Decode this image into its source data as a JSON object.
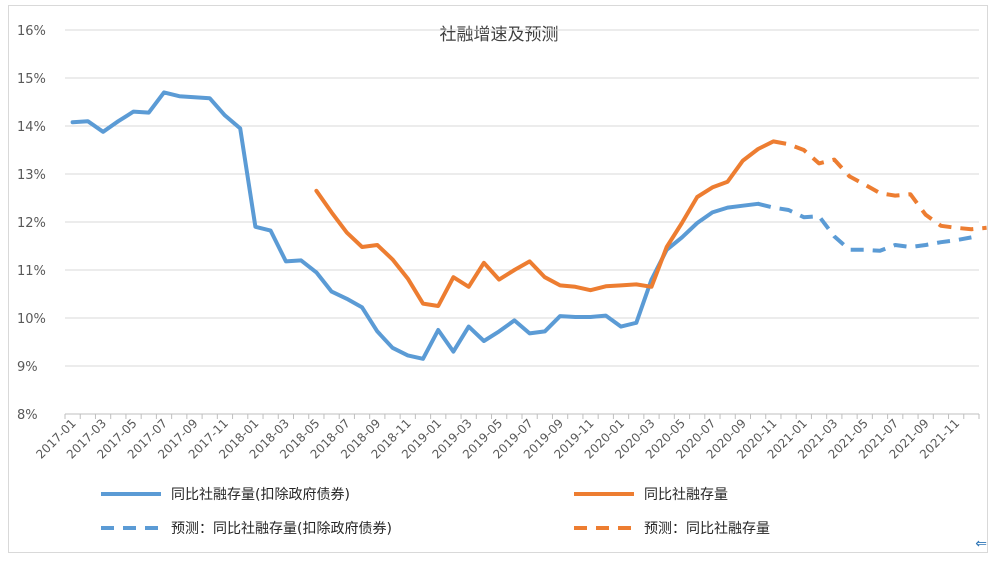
{
  "chart_data": {
    "type": "line",
    "title": "社融增速及预测",
    "xlabel": "",
    "ylabel": "",
    "ylim": [
      8,
      16
    ],
    "y_ticks": [
      "16%",
      "15%",
      "14%",
      "13%",
      "12%",
      "11%",
      "10%",
      "9%",
      "8%"
    ],
    "x_ticks": [
      "2017-01",
      "2017-03",
      "2017-05",
      "2017-07",
      "2017-09",
      "2017-11",
      "2018-01",
      "2018-03",
      "2018-05",
      "2018-07",
      "2018-09",
      "2018-11",
      "2019-01",
      "2019-03",
      "2019-05",
      "2019-07",
      "2019-09",
      "2019-11",
      "2020-01",
      "2020-03",
      "2020-05",
      "2020-07",
      "2020-09",
      "2020-11",
      "2021-01",
      "2021-03",
      "2021-05",
      "2021-07",
      "2021-09",
      "2021-11"
    ],
    "x_start": "2017-01",
    "grid": "horizontal",
    "legend_position": "bottom",
    "series": [
      {
        "name": "同比社融存量(扣除政府债券)",
        "color": "#5b9bd5",
        "dash": false,
        "start_index": 0,
        "values": [
          14.08,
          14.1,
          13.88,
          14.1,
          14.3,
          14.28,
          14.7,
          14.62,
          14.6,
          14.58,
          14.22,
          13.95,
          11.9,
          11.82,
          11.18,
          11.2,
          10.95,
          10.55,
          10.4,
          10.22,
          9.72,
          9.38,
          9.22,
          9.15,
          9.75,
          9.3,
          9.82,
          9.52,
          9.72,
          9.95,
          9.68,
          9.72,
          10.04,
          10.02,
          10.02,
          10.05,
          9.82,
          9.9,
          10.8,
          11.42,
          11.68,
          11.98,
          12.2,
          12.3,
          12.34,
          12.38
        ]
      },
      {
        "name": "同比社融存量",
        "color": "#ed7d31",
        "dash": false,
        "start_index": 16,
        "values": [
          12.65,
          12.2,
          11.78,
          11.48,
          11.52,
          11.22,
          10.82,
          10.3,
          10.25,
          10.85,
          10.65,
          11.15,
          10.8,
          11.0,
          11.18,
          10.85,
          10.68,
          10.65,
          10.58,
          10.66,
          10.68,
          10.7,
          10.65,
          11.48,
          11.98,
          12.52,
          12.72,
          12.84,
          13.28,
          13.52,
          13.68
        ]
      },
      {
        "name": "预测：同比社融存量(扣除政府债券)",
        "color": "#5b9bd5",
        "dash": true,
        "start_index": 45,
        "values": [
          12.38,
          12.3,
          12.25,
          12.1,
          12.12,
          11.7,
          11.42,
          11.42,
          11.4,
          11.52,
          11.48,
          11.52,
          11.58,
          11.62,
          11.68
        ]
      },
      {
        "name": "预测：同比社融存量",
        "color": "#ed7d31",
        "dash": true,
        "start_index": 46,
        "values": [
          13.68,
          13.62,
          13.5,
          13.22,
          13.3,
          12.95,
          12.78,
          12.6,
          12.55,
          12.58,
          12.15,
          11.92,
          11.88,
          11.85,
          11.88
        ]
      }
    ]
  },
  "corner_mark": "⇐"
}
